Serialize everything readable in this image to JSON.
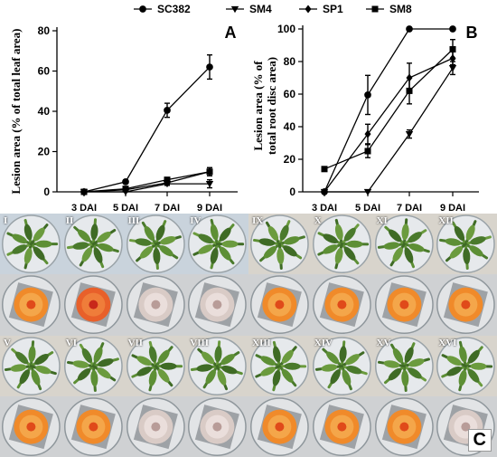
{
  "legend": [
    {
      "name": "SC382",
      "marker": "circle"
    },
    {
      "name": "SM4",
      "marker": "triangle-down"
    },
    {
      "name": "SP1",
      "marker": "diamond"
    },
    {
      "name": "SM8",
      "marker": "square"
    }
  ],
  "panel_c_label": "C",
  "chart_data": [
    {
      "type": "line",
      "panel_label": "A",
      "ylabel": "Lesion area (% of total leaf area)",
      "xlabel": "",
      "categories": [
        "3 DAI",
        "5 DAI",
        "7 DAI",
        "9 DAI"
      ],
      "ylim": [
        0,
        80
      ],
      "yticks": [
        0,
        20,
        40,
        60,
        80
      ],
      "series": [
        {
          "name": "SC382",
          "values": [
            0,
            5,
            40.5,
            62
          ],
          "errors": [
            0.5,
            0.8,
            3.5,
            6
          ]
        },
        {
          "name": "SM4",
          "values": [
            0,
            0,
            4,
            4
          ],
          "errors": [
            0.3,
            0.3,
            0.8,
            2
          ]
        },
        {
          "name": "SP1",
          "values": [
            0,
            1,
            4.5,
            10
          ],
          "errors": [
            0.3,
            0.3,
            0.8,
            2
          ]
        },
        {
          "name": "SM8",
          "values": [
            0,
            1.5,
            6,
            10
          ],
          "errors": [
            0.3,
            0.5,
            1,
            2
          ]
        }
      ]
    },
    {
      "type": "line",
      "panel_label": "B",
      "ylabel": "Lesion area (% of total root disc area)",
      "xlabel": "",
      "categories": [
        "3 DAI",
        "5 DAI",
        "7 DAI",
        "9 DAI"
      ],
      "ylim": [
        0,
        100
      ],
      "yticks": [
        0,
        20,
        40,
        60,
        80,
        100
      ],
      "series": [
        {
          "name": "SC382",
          "values": [
            0,
            59.5,
            100,
            100
          ],
          "errors": [
            0,
            12,
            0,
            0
          ]
        },
        {
          "name": "SM4",
          "values": [
            0,
            0,
            35.5,
            76
          ],
          "errors": [
            0,
            0,
            2.5,
            4
          ]
        },
        {
          "name": "SP1",
          "values": [
            0,
            35.5,
            70,
            82
          ],
          "errors": [
            0,
            6,
            9,
            4
          ]
        },
        {
          "name": "SM8",
          "values": [
            14,
            25,
            62,
            87.5
          ],
          "errors": [
            1,
            4,
            8,
            6
          ]
        }
      ]
    }
  ],
  "photo_tiles": [
    "I",
    "II",
    "III",
    "IV",
    "V",
    "VI",
    "VII",
    "VIII",
    "IX",
    "X",
    "XI",
    "XII",
    "XIII",
    "XIV",
    "XV",
    "XVI"
  ]
}
